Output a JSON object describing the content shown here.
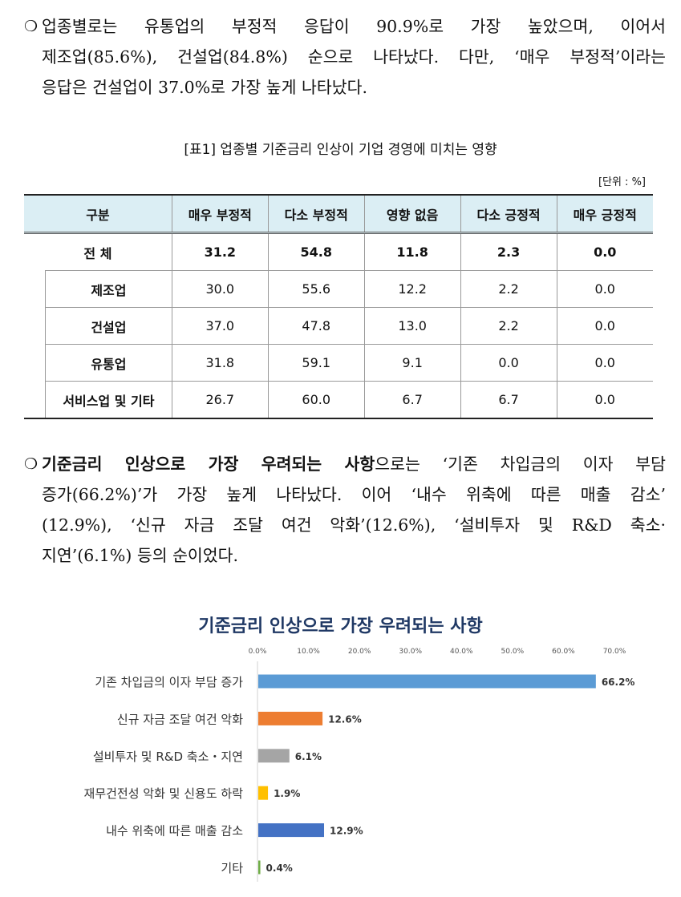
{
  "para1": {
    "bullet": "❍",
    "lines": [
      "업종별로는 유통업의 부정적 응답이 90.9%로 가장 높았으며, 이어서",
      "제조업(85.6%), 건설업(84.8%) 순으로 나타났다. 다만, ‘매우 부정적’이라는",
      "응답은 건설업이 37.0%로 가장 높게 나타났다."
    ]
  },
  "table": {
    "caption": "[표1] 업종별 기준금리 인상이 기업 경영에 미치는 영향",
    "unit": "[단위 : %]",
    "headers": [
      "구분",
      "매우 부정적",
      "다소 부정적",
      "영향 없음",
      "다소 긍정적",
      "매우 긍정적"
    ],
    "total": {
      "label": "전 체",
      "values": [
        "31.2",
        "54.8",
        "11.8",
        "2.3",
        "0.0"
      ]
    },
    "rows": [
      {
        "label": "제조업",
        "values": [
          "30.0",
          "55.6",
          "12.2",
          "2.2",
          "0.0"
        ]
      },
      {
        "label": "건설업",
        "values": [
          "37.0",
          "47.8",
          "13.0",
          "2.2",
          "0.0"
        ]
      },
      {
        "label": "유통업",
        "values": [
          "31.8",
          "59.1",
          "9.1",
          "0.0",
          "0.0"
        ]
      },
      {
        "label": "서비스업 및 기타",
        "values": [
          "26.7",
          "60.0",
          "6.7",
          "6.7",
          "0.0"
        ]
      }
    ]
  },
  "para2": {
    "bullet": "❍",
    "bold": "기준금리 인상으로 가장 우려되는 사항",
    "line1_rest": "으로는 ‘기존 차입금의 이자 부담",
    "lines": [
      "증가(66.2%)’가 가장 높게 나타났다. 이어 ‘내수 위축에 따른 매출 감소’",
      "(12.9%), ‘신규 자금 조달 여건 악화’(12.6%), ‘설비투자 및 R&D 축소·",
      "지연’(6.1%) 등의 순이었다."
    ]
  },
  "chart_data": {
    "type": "bar",
    "orientation": "horizontal",
    "title": "기준금리 인상으로 가장 우려되는 사항",
    "xlim": [
      0,
      70
    ],
    "ticks": [
      "0.0%",
      "10.0%",
      "20.0%",
      "30.0%",
      "40.0%",
      "50.0%",
      "60.0%",
      "70.0%"
    ],
    "tick_values": [
      0,
      10,
      20,
      30,
      40,
      50,
      60,
      70
    ],
    "categories": [
      "기존 차입금의 이자 부담 증가",
      "신규 자금 조달 여건 악화",
      "설비투자 및 R&D 축소・지연",
      "재무건전성 악화 및 신용도 하락",
      "내수 위축에 따른 매출 감소",
      "기타"
    ],
    "values": [
      66.2,
      12.6,
      6.1,
      1.9,
      12.9,
      0.4
    ],
    "labels": [
      "66.2%",
      "12.6%",
      "6.1%",
      "1.9%",
      "12.9%",
      "0.4%"
    ],
    "colors": [
      "#5b9bd5",
      "#ed7d31",
      "#a5a5a5",
      "#ffc000",
      "#4472c4",
      "#70ad47"
    ],
    "grid": false,
    "legend": "none"
  }
}
